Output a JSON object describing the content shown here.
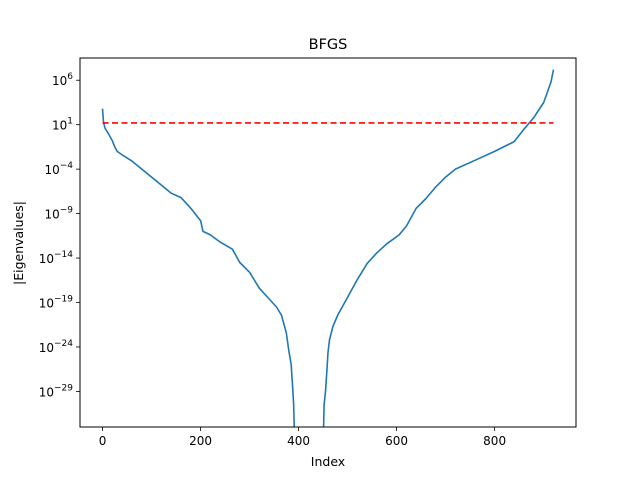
{
  "chart_data": {
    "type": "line",
    "title": "BFGS",
    "xlabel": "Index",
    "ylabel": "|Eigenvalues|",
    "xlim": [
      -46,
      966
    ],
    "ylim_log10": [
      -33,
      8.5
    ],
    "y_scale": "log",
    "x_ticks": [
      0,
      200,
      400,
      600,
      800
    ],
    "x_tick_labels": [
      "0",
      "200",
      "400",
      "600",
      "800"
    ],
    "y_tick_exponents": [
      6,
      1,
      -4,
      -9,
      -14,
      -19,
      -24,
      -29
    ],
    "y_tick_labels": [
      "10",
      "10",
      "10",
      "10",
      "10",
      "10",
      "10",
      "10"
    ],
    "y_tick_superscripts": [
      "6",
      "1",
      "−4",
      "−9",
      "−14",
      "−19",
      "−24",
      "−29"
    ],
    "grid": false,
    "series": [
      {
        "color": "#1f77b4",
        "style": "solid",
        "segments": [
          [
            [
              0,
              2.8
            ],
            [
              2,
              1.3
            ],
            [
              5,
              0.6
            ],
            [
              12,
              0.0
            ],
            [
              20,
              -0.8
            ],
            [
              25,
              -1.5
            ],
            [
              30,
              -2.0
            ],
            [
              40,
              -2.4
            ],
            [
              60,
              -3.1
            ],
            [
              80,
              -4.0
            ],
            [
              100,
              -4.9
            ],
            [
              120,
              -5.8
            ],
            [
              140,
              -6.7
            ],
            [
              160,
              -7.2
            ],
            [
              180,
              -8.4
            ],
            [
              200,
              -9.8
            ],
            [
              205,
              -11.0
            ],
            [
              220,
              -11.4
            ],
            [
              240,
              -12.2
            ],
            [
              265,
              -13.0
            ],
            [
              280,
              -14.5
            ],
            [
              300,
              -15.6
            ],
            [
              320,
              -17.4
            ],
            [
              340,
              -18.6
            ],
            [
              355,
              -19.5
            ],
            [
              365,
              -20.4
            ],
            [
              375,
              -22.4
            ],
            [
              380,
              -24.4
            ],
            [
              385,
              -26.0
            ],
            [
              388,
              -28.6
            ],
            [
              390,
              -30.6
            ],
            [
              391,
              -33.0
            ]
          ],
          [
            [
              451,
              -33.0
            ],
            [
              452,
              -30.5
            ],
            [
              455,
              -29.0
            ],
            [
              458,
              -26.5
            ],
            [
              460,
              -24.6
            ],
            [
              463,
              -23.2
            ],
            [
              470,
              -21.7
            ],
            [
              480,
              -20.4
            ],
            [
              500,
              -18.4
            ],
            [
              520,
              -16.4
            ],
            [
              540,
              -14.6
            ],
            [
              560,
              -13.4
            ],
            [
              580,
              -12.4
            ],
            [
              605,
              -11.4
            ],
            [
              620,
              -10.4
            ],
            [
              640,
              -8.4
            ],
            [
              660,
              -7.3
            ],
            [
              680,
              -6.0
            ],
            [
              700,
              -4.9
            ],
            [
              720,
              -4.0
            ],
            [
              760,
              -3.0
            ],
            [
              800,
              -2.0
            ],
            [
              840,
              -0.9
            ],
            [
              860,
              0.5
            ],
            [
              880,
              1.8
            ],
            [
              900,
              3.5
            ],
            [
              915,
              5.8
            ],
            [
              920,
              7.2
            ]
          ]
        ]
      },
      {
        "color": "#ff0000",
        "style": "dashed",
        "segments": [
          [
            [
              0,
              1.2
            ],
            [
              920,
              1.2
            ]
          ]
        ]
      }
    ]
  }
}
